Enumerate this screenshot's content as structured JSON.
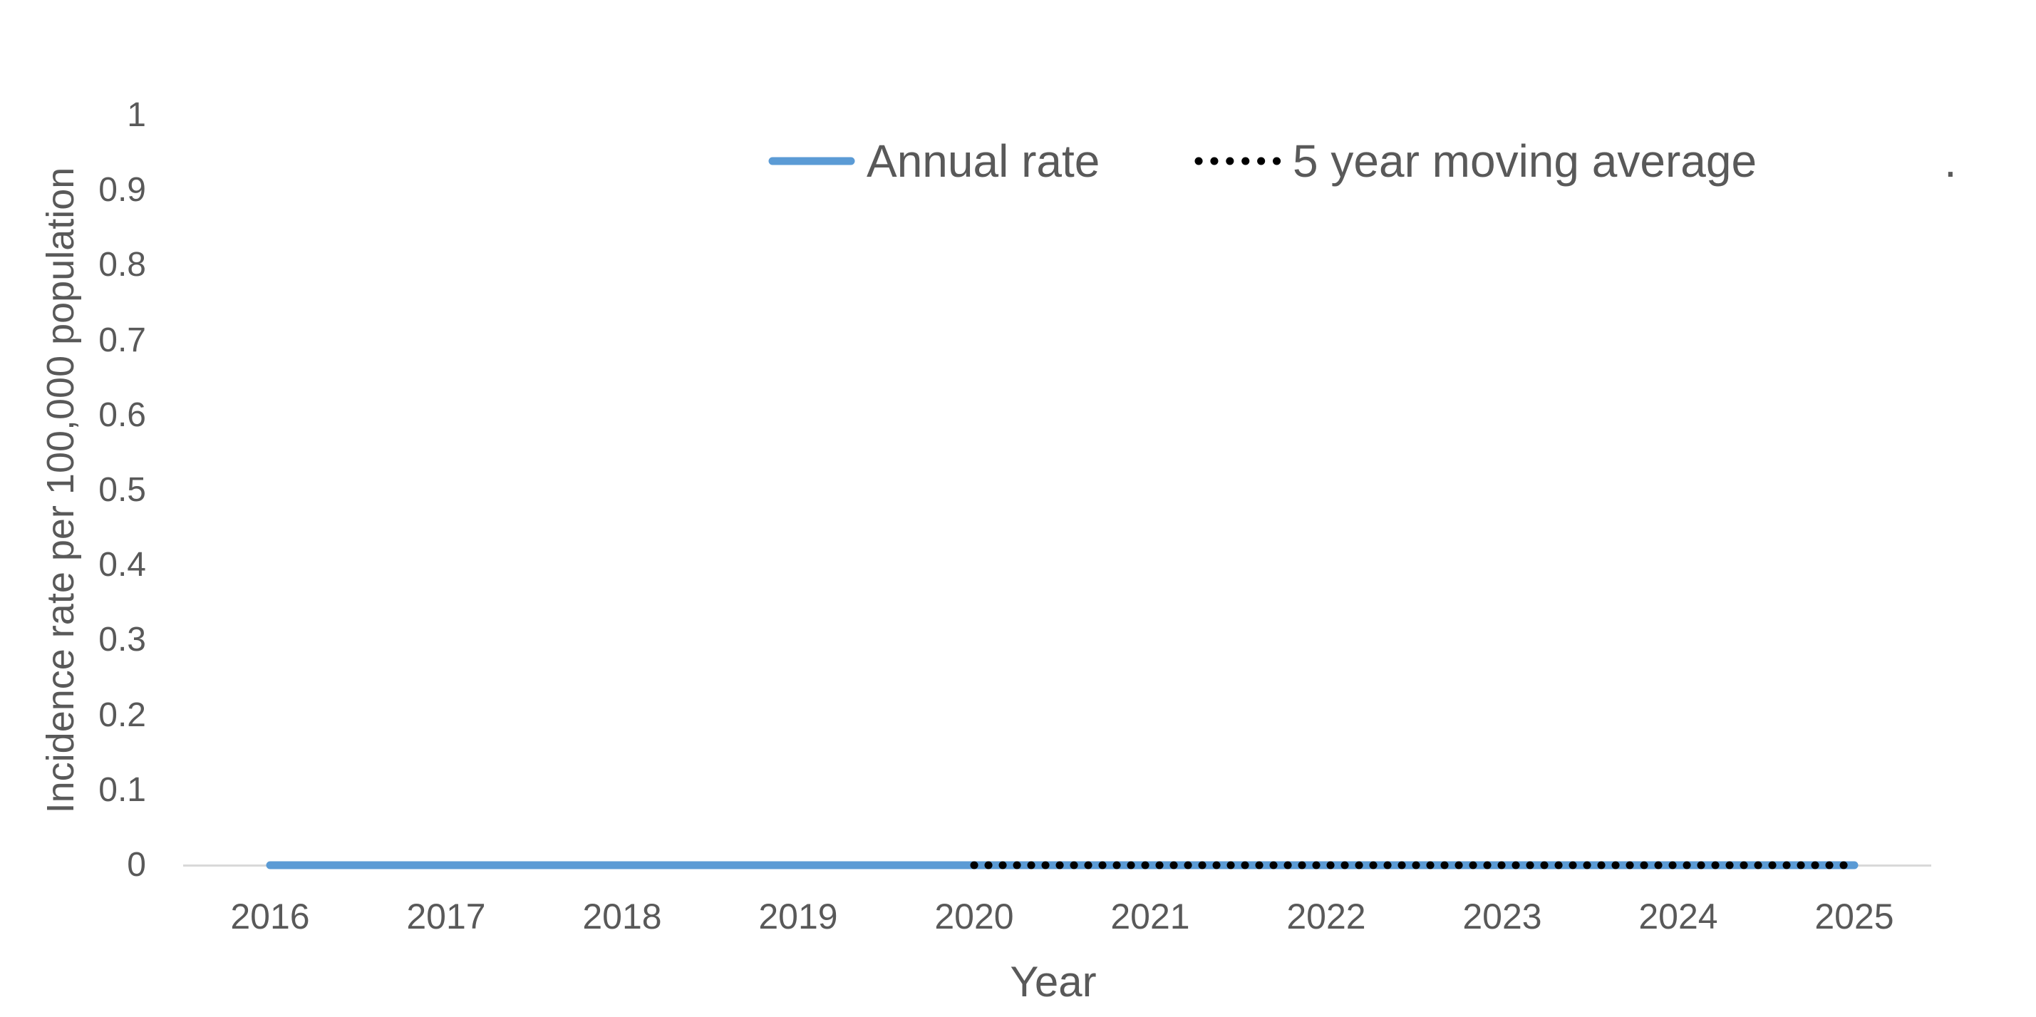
{
  "figure": {
    "background": "#FFFFFF",
    "text_color": "#595959",
    "axis_line_color": "#D9D9D9"
  },
  "legend": {
    "items": [
      {
        "label": "Annual rate",
        "color": "#5B9BD5",
        "style": "solid"
      },
      {
        "label": "5 year moving average",
        "color": "#000000",
        "style": "dotted"
      }
    ],
    "extra_text": "."
  },
  "chart_data": {
    "type": "line",
    "title": "",
    "xlabel": "Year",
    "ylabel": "Incidence rate per 100,000 population",
    "x": [
      2016,
      2017,
      2018,
      2019,
      2020,
      2021,
      2022,
      2023,
      2024,
      2025
    ],
    "series": [
      {
        "name": "Annual rate",
        "color": "#5B9BD5",
        "style": "solid",
        "values": [
          0,
          0,
          0,
          0,
          0,
          0,
          0,
          0,
          0,
          0
        ]
      },
      {
        "name": "5 year moving average",
        "color": "#000000",
        "style": "dotted",
        "values": [
          null,
          null,
          null,
          null,
          0,
          0,
          0,
          0,
          0,
          0
        ]
      }
    ],
    "ylim": [
      0,
      1
    ],
    "yticks": [
      {
        "value": 0,
        "label": "0"
      },
      {
        "value": 0.1,
        "label": "0.1"
      },
      {
        "value": 0.2,
        "label": "0.2"
      },
      {
        "value": 0.3,
        "label": "0.3"
      },
      {
        "value": 0.4,
        "label": "0.4"
      },
      {
        "value": 0.5,
        "label": "0.5"
      },
      {
        "value": 0.6,
        "label": "0.6"
      },
      {
        "value": 0.7,
        "label": "0.7"
      },
      {
        "value": 0.8,
        "label": "0.8"
      },
      {
        "value": 0.9,
        "label": "0.9"
      },
      {
        "value": 1,
        "label": "1"
      }
    ],
    "grid": false,
    "legend_position": "top-center"
  }
}
